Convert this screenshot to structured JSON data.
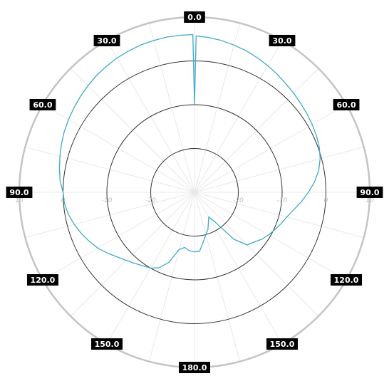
{
  "chart_data": {
    "type": "polar_line",
    "angular_labels": [
      "0.0",
      "30.0",
      "60.0",
      "90.0",
      "120.0",
      "150.0",
      "180.0",
      "150.0",
      "120.0",
      "90.0",
      "60.0",
      "30.0"
    ],
    "angular_label_angles": [
      0,
      30,
      60,
      90,
      120,
      150,
      180,
      210,
      240,
      270,
      300,
      330
    ],
    "radial_ticks": [
      "-20",
      "-10",
      "0",
      "10"
    ],
    "radial_tick_values": [
      -20,
      -10,
      0,
      10
    ],
    "radial_range": [
      -30,
      10
    ],
    "series": [
      {
        "color": "#3ea9c8",
        "theta_deg": [
          0,
          0.6,
          5,
          10,
          15,
          20,
          25,
          30,
          35,
          40,
          45,
          50,
          55,
          60,
          65,
          70,
          75,
          80,
          85,
          90,
          95,
          100,
          105,
          110,
          115,
          120,
          125,
          130,
          135,
          140,
          145,
          150,
          155,
          160,
          165,
          170,
          175,
          180,
          185,
          190,
          195,
          200,
          205,
          210,
          215,
          220,
          225,
          230,
          235,
          240,
          245,
          250,
          255,
          260,
          265,
          270,
          275,
          280,
          285,
          290,
          295,
          300,
          305,
          310,
          315,
          320,
          325,
          330,
          335,
          340,
          345,
          350,
          355,
          359.4,
          360
        ],
        "r": [
          -10,
          5.7,
          5.5,
          5.2,
          4.8,
          4.4,
          3.9,
          3.4,
          2.9,
          2.4,
          2.0,
          1.6,
          1.3,
          1.0,
          0.7,
          0.3,
          -0.3,
          -1.2,
          -2.5,
          -4.0,
          -5.5,
          -7.0,
          -8.2,
          -9.0,
          -9.8,
          -10.5,
          -11.3,
          -12.3,
          -13.0,
          -16.0,
          -21.5,
          -23.5,
          -22.5,
          -21.0,
          -20.0,
          -18.5,
          -16.5,
          -16.4,
          -16.6,
          -17.2,
          -16.5,
          -13.0,
          -11.0,
          -10.0,
          -9.5,
          -8.8,
          -8.0,
          -7.0,
          -5.8,
          -4.5,
          -3.5,
          -2.5,
          -1.6,
          -0.8,
          -0.2,
          0.0,
          0.8,
          1.3,
          1.8,
          2.3,
          2.8,
          3.2,
          3.6,
          4.0,
          4.4,
          4.8,
          5.1,
          5.4,
          5.6,
          5.8,
          5.9,
          6.0,
          6.0,
          6.0,
          -10
        ]
      }
    ]
  }
}
